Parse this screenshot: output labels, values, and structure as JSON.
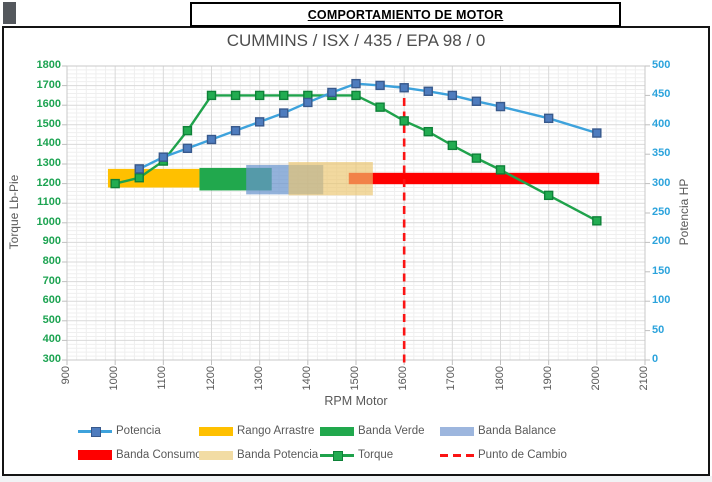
{
  "window": {
    "report_title": "COMPORTAMIENTO DE MOTOR"
  },
  "colors": {
    "left_axis_text": "#1CA351",
    "right_axis_text": "#2BA3DC",
    "gray_text": "#595959",
    "grid_major": "#D9D9D9",
    "grid_minor": "#EFEFEF",
    "plot_border": "#C9C9C9",
    "tick_mark": "#BFBFBF"
  },
  "chart_data": {
    "type": "line",
    "title": "CUMMINS / ISX / 435 / EPA 98 / 0",
    "xlabel": "RPM Motor",
    "ylabel_left": "Torque Lb-Pie",
    "ylabel_right": "Potencia HP",
    "x_range": [
      900,
      2100
    ],
    "x_tick_step": 100,
    "y_left_range": [
      300,
      1800
    ],
    "y_left_tick_step": 100,
    "y_right_range": [
      0,
      500
    ],
    "y_right_tick_step": 50,
    "grid": "major+minor",
    "legend_position": "bottom",
    "series": [
      {
        "name": "Torque",
        "axis": "left",
        "line_color": "#1FA24B",
        "marker_color": "#22AC51",
        "marker_edge": "#0E8138",
        "points": [
          [
            1000,
            1200
          ],
          [
            1050,
            1230
          ],
          [
            1100,
            1315
          ],
          [
            1150,
            1470
          ],
          [
            1200,
            1650
          ],
          [
            1250,
            1650
          ],
          [
            1300,
            1650
          ],
          [
            1350,
            1650
          ],
          [
            1400,
            1650
          ],
          [
            1450,
            1650
          ],
          [
            1500,
            1650
          ],
          [
            1550,
            1590
          ],
          [
            1600,
            1520
          ],
          [
            1650,
            1465
          ],
          [
            1700,
            1395
          ],
          [
            1750,
            1330
          ],
          [
            1800,
            1270
          ],
          [
            1900,
            1140
          ],
          [
            2000,
            1010
          ]
        ]
      },
      {
        "name": "Potencia",
        "axis": "right",
        "line_color": "#3DA2DC",
        "marker_color": "#4E7CBE",
        "marker_edge": "#38598C",
        "points": [
          [
            1050,
            325
          ],
          [
            1100,
            345
          ],
          [
            1150,
            360
          ],
          [
            1200,
            375
          ],
          [
            1250,
            390
          ],
          [
            1300,
            405
          ],
          [
            1350,
            420
          ],
          [
            1400,
            438
          ],
          [
            1450,
            455
          ],
          [
            1500,
            470
          ],
          [
            1550,
            467
          ],
          [
            1600,
            463
          ],
          [
            1650,
            457
          ],
          [
            1700,
            450
          ],
          [
            1750,
            440
          ],
          [
            1800,
            431
          ],
          [
            1900,
            411
          ],
          [
            2000,
            386
          ]
        ]
      }
    ],
    "bands": [
      {
        "name": "Rango Arrastre",
        "rpm": [
          985,
          1175
        ],
        "torque": [
          1180,
          1275
        ],
        "color": "#FFC000",
        "opacity": 1
      },
      {
        "name": "Banda Verde",
        "rpm": [
          1175,
          1325
        ],
        "torque": [
          1165,
          1280
        ],
        "color": "#21A84D",
        "opacity": 1
      },
      {
        "name": "Banda Balance",
        "rpm": [
          1272,
          1432
        ],
        "torque": [
          1145,
          1295
        ],
        "color": "#6994CD",
        "opacity": 0.72
      },
      {
        "name": "Banda Consumo",
        "rpm": [
          1485,
          2005
        ],
        "torque": [
          1197,
          1255
        ],
        "color": "#FE0000",
        "opacity": 1
      },
      {
        "name": "Banda Potencia",
        "rpm": [
          1360,
          1535
        ],
        "torque": [
          1140,
          1310
        ],
        "color": "#ECC66E",
        "opacity": 0.66
      }
    ],
    "vline": {
      "name": "Punto de Cambio",
      "rpm": 1600,
      "color": "#FB1414",
      "torque_top": 1637
    },
    "legend": [
      {
        "label": "Potencia",
        "swatch": "line-marker",
        "color": "#3DA2DC",
        "marker_color": "#4E7CBE"
      },
      {
        "label": "Rango Arrastre",
        "swatch": "bar",
        "color": "#FFC000"
      },
      {
        "label": "Banda Verde",
        "swatch": "bar",
        "color": "#21A84D"
      },
      {
        "label": "Banda Balance",
        "swatch": "bar",
        "color": "#9DB6DE"
      },
      {
        "label": "Banda Consumo",
        "swatch": "bar",
        "color": "#FE0000"
      },
      {
        "label": "Banda Potencia",
        "swatch": "bar",
        "color": "#F2DCA4"
      },
      {
        "label": "Torque",
        "swatch": "line-marker",
        "color": "#1FA24B",
        "marker_color": "#22AC51"
      },
      {
        "label": "Punto de Cambio",
        "swatch": "dashed",
        "color": "#FB1414"
      }
    ]
  }
}
